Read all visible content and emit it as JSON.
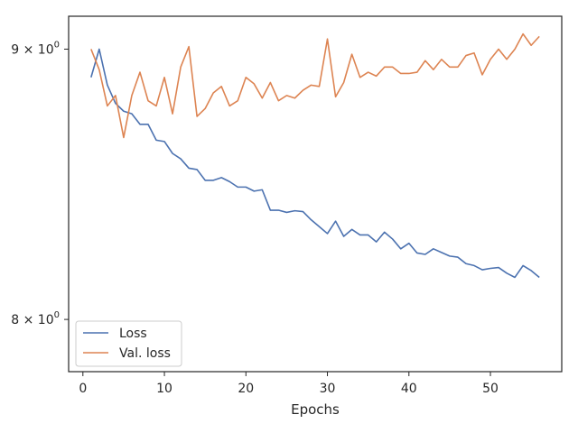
{
  "chart_data": {
    "type": "line",
    "title": "",
    "xlabel": "Epochs",
    "ylabel": "",
    "x_scale": "linear",
    "y_scale": "log",
    "xlim": [
      -1.75,
      58.75
    ],
    "ylim": [
      7.82,
      9.13
    ],
    "x_ticks": [
      0,
      10,
      20,
      30,
      40,
      50
    ],
    "x_tick_labels": [
      "0",
      "10",
      "20",
      "30",
      "40",
      "50"
    ],
    "y_ticks": [
      8,
      9
    ],
    "y_tick_labels": [
      {
        "mantissa": "8",
        "exp": "0"
      },
      {
        "mantissa": "9",
        "exp": "0"
      }
    ],
    "grid": false,
    "legend": {
      "placement": "lower-left",
      "entries": [
        "Loss",
        "Val. loss"
      ]
    },
    "x": [
      1,
      2,
      3,
      4,
      5,
      6,
      7,
      8,
      9,
      10,
      11,
      12,
      13,
      14,
      15,
      16,
      17,
      18,
      19,
      20,
      21,
      22,
      23,
      24,
      25,
      26,
      27,
      28,
      29,
      30,
      31,
      32,
      33,
      34,
      35,
      36,
      37,
      38,
      39,
      40,
      41,
      42,
      43,
      44,
      45,
      46,
      47,
      48,
      49,
      50,
      51,
      52,
      53,
      54,
      55,
      56
    ],
    "series": [
      {
        "name": "Loss",
        "color": "#4c72b0",
        "values": [
          8.89,
          9.0,
          8.86,
          8.79,
          8.76,
          8.75,
          8.71,
          8.71,
          8.65,
          8.645,
          8.6,
          8.58,
          8.545,
          8.54,
          8.5,
          8.5,
          8.51,
          8.495,
          8.475,
          8.475,
          8.46,
          8.465,
          8.39,
          8.39,
          8.382,
          8.388,
          8.385,
          8.355,
          8.33,
          8.305,
          8.35,
          8.295,
          8.32,
          8.3,
          8.3,
          8.275,
          8.31,
          8.285,
          8.25,
          8.27,
          8.235,
          8.23,
          8.25,
          8.237,
          8.224,
          8.22,
          8.197,
          8.19,
          8.175,
          8.18,
          8.183,
          8.163,
          8.148,
          8.19,
          8.172,
          8.148
        ]
      },
      {
        "name": "Val. loss",
        "color": "#dd8452",
        "values": [
          9.0,
          8.92,
          8.78,
          8.82,
          8.66,
          8.82,
          8.91,
          8.8,
          8.78,
          8.89,
          8.75,
          8.93,
          9.01,
          8.74,
          8.77,
          8.83,
          8.855,
          8.78,
          8.8,
          8.89,
          8.865,
          8.81,
          8.87,
          8.8,
          8.82,
          8.81,
          8.84,
          8.86,
          8.855,
          9.04,
          8.815,
          8.87,
          8.98,
          8.89,
          8.91,
          8.895,
          8.93,
          8.93,
          8.905,
          8.905,
          8.91,
          8.955,
          8.92,
          8.96,
          8.93,
          8.93,
          8.975,
          8.985,
          8.9,
          8.96,
          9.0,
          8.96,
          9.0,
          9.06,
          9.015,
          9.05
        ]
      }
    ]
  }
}
